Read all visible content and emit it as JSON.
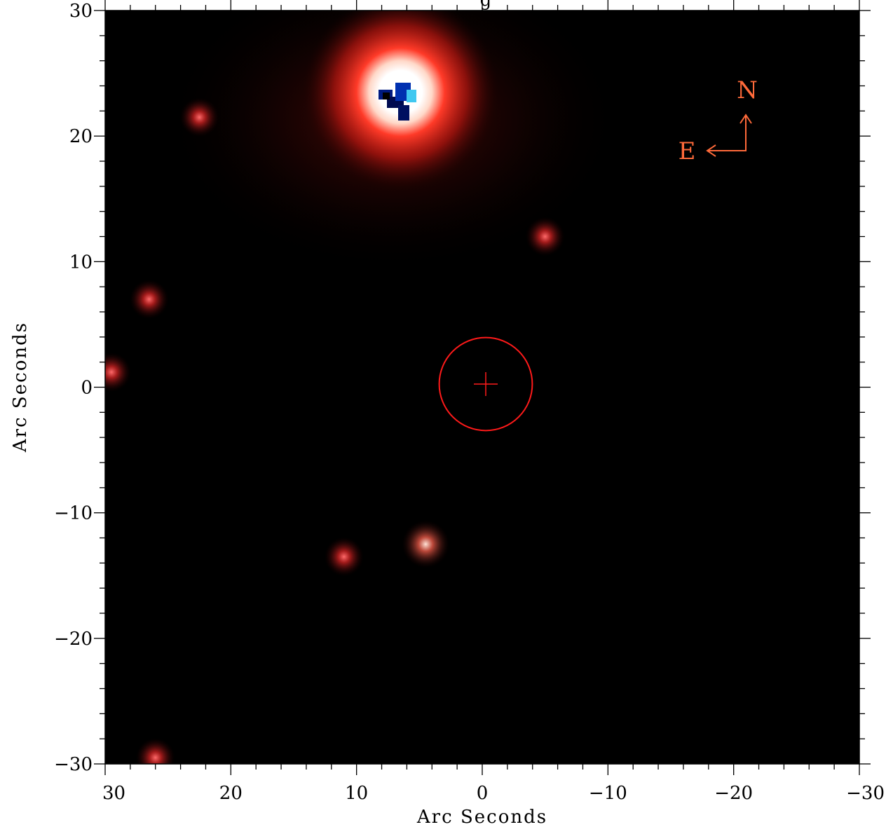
{
  "title_fragment": "g",
  "image": {
    "colors": {
      "background": "#000000",
      "glow": "#ff2a1e",
      "core": "#ffffff",
      "saturated": "#001a80",
      "marker": "#ff1a1a",
      "compass": "#ff6a3a"
    }
  },
  "compass": {
    "north": "N",
    "east": "E"
  },
  "marker": {
    "shape": "circle-with-cross",
    "center_arcsec": [
      0,
      0
    ],
    "radius_arcsec": 3.7
  },
  "chart_data": {
    "type": "image",
    "xlabel": "Arc Seconds",
    "ylabel": "Arc Seconds",
    "xlim": [
      30,
      -30
    ],
    "ylim": [
      -30,
      30
    ],
    "x_major_ticks": [
      30,
      20,
      10,
      0,
      -10,
      -20,
      -30
    ],
    "y_major_ticks": [
      30,
      20,
      10,
      0,
      -10,
      -20,
      -30
    ],
    "x_tick_labels": [
      "30",
      "20",
      "10",
      "0",
      "−10",
      "−20",
      "−30"
    ],
    "y_tick_labels": [
      "30",
      "20",
      "10",
      "0",
      "−10",
      "−20",
      "−30"
    ],
    "minor_tick_step": 2,
    "sources": [
      {
        "x": 6.5,
        "y": 23.5,
        "brightness": "saturated"
      },
      {
        "x": 22.5,
        "y": 21.5,
        "brightness": "faint"
      },
      {
        "x": -5.0,
        "y": 12.0,
        "brightness": "faint"
      },
      {
        "x": 26.5,
        "y": 7.0,
        "brightness": "faint"
      },
      {
        "x": 29.5,
        "y": 1.2,
        "brightness": "faint"
      },
      {
        "x": 4.5,
        "y": -12.5,
        "brightness": "moderate"
      },
      {
        "x": 11.0,
        "y": -13.5,
        "brightness": "faint"
      },
      {
        "x": 26.0,
        "y": -29.5,
        "brightness": "faint"
      }
    ]
  }
}
